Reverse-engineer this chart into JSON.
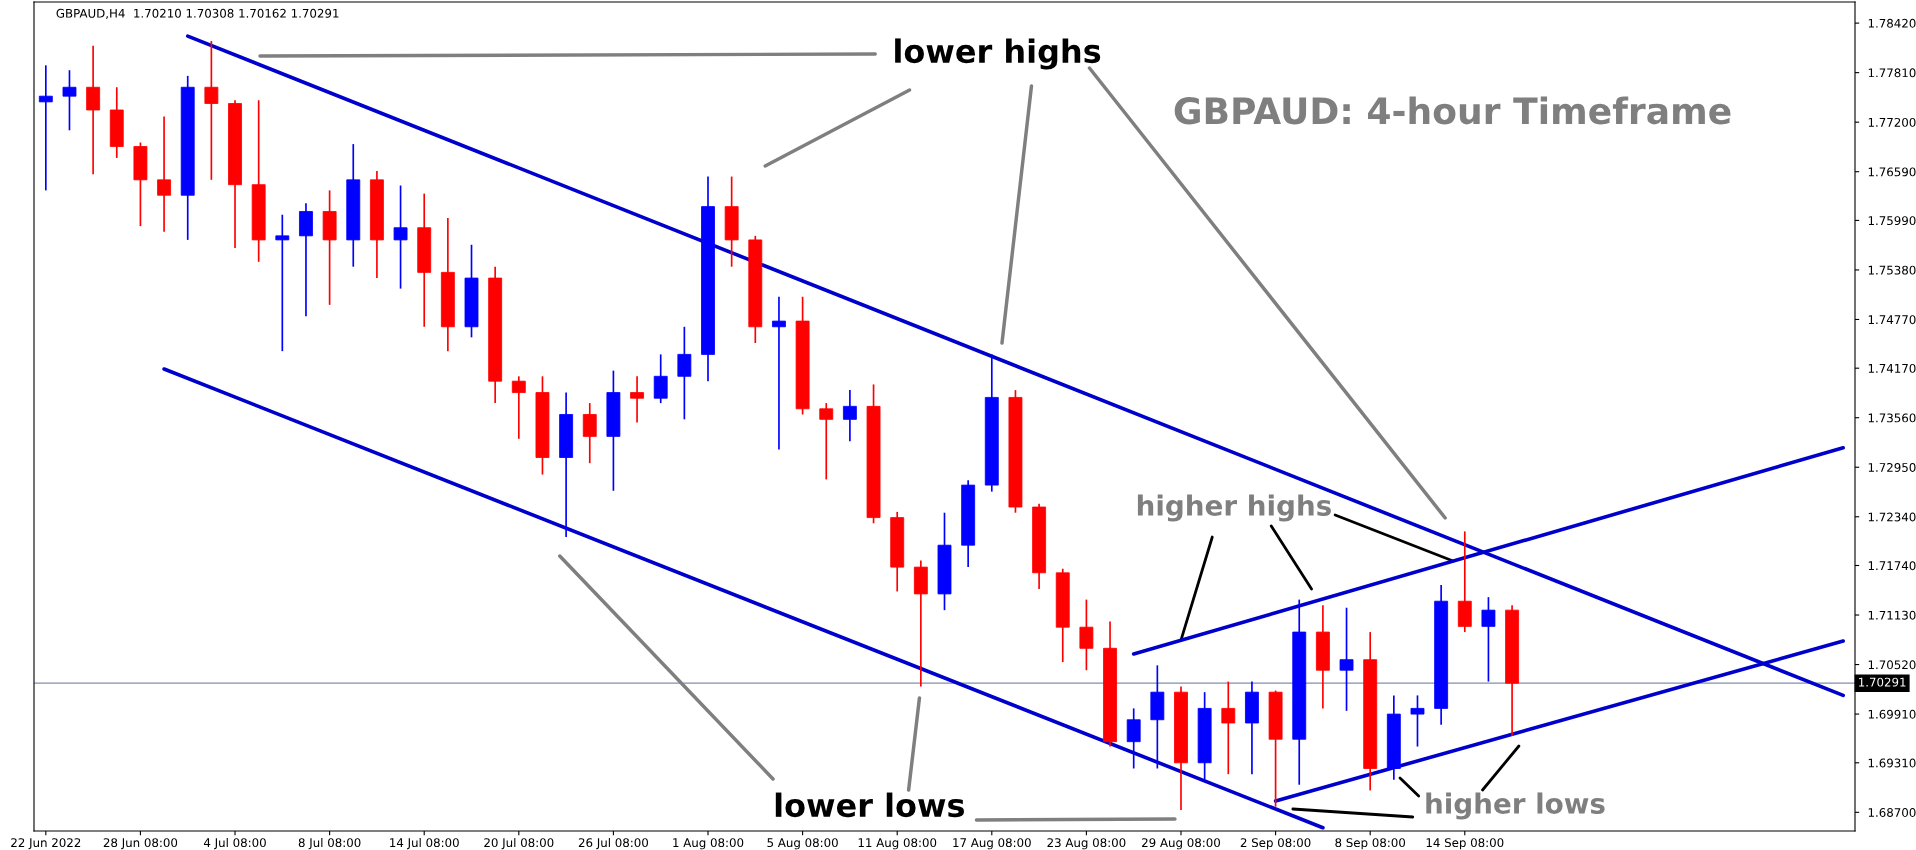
{
  "chart_data": {
    "type": "candlestick",
    "title": "GBPAUD: 4-hour Timeframe",
    "subtitle": "GBPAUD,H4  1.70210 1.70308 1.70162 1.70291",
    "annotations": [
      "lower highs",
      "lower lows",
      {
        "text": "higher highs",
        "x": "29 Aug 08:00",
        "y": 1.7082
      },
      "higher lows"
    ],
    "categories": [
      "22 Jun 2022",
      null,
      null,
      null,
      "28 Jun 08:00",
      null,
      null,
      null,
      "4 Jul 08:00",
      null,
      null,
      null,
      "8 Jul 08:00",
      null,
      null,
      null,
      "14 Jul 08:00",
      null,
      null,
      null,
      "20 Jul 08:00",
      null,
      null,
      null,
      "26 Jul 08:00",
      null,
      null,
      null,
      "1 Aug 08:00",
      null,
      null,
      null,
      "5 Aug 08:00",
      null,
      null,
      null,
      "11 Aug 08:00",
      null,
      null,
      null,
      "17 Aug 08:00",
      null,
      null,
      null,
      "23 Aug 08:00",
      null,
      null,
      null,
      "29 Aug 08:00",
      null,
      null,
      null,
      "2 Sep 08:00",
      null,
      null,
      null,
      "8 Sep 08:00",
      null,
      null,
      null,
      "14 Sep 08:00",
      null,
      null,
      null,
      null,
      null,
      null,
      null,
      null,
      null,
      null,
      null,
      null,
      null,
      null,
      null,
      null
    ],
    "ohlc": [
      [
        1.7745,
        1.779,
        1.7636,
        1.7752
      ],
      [
        1.7752,
        1.7784,
        1.771,
        1.7763
      ],
      [
        1.7763,
        1.7814,
        1.7656,
        1.7735
      ],
      [
        1.7735,
        1.7763,
        1.7676,
        1.769
      ],
      [
        1.769,
        1.7695,
        1.7592,
        1.7649
      ],
      [
        1.7649,
        1.7727,
        1.7585,
        1.763
      ],
      [
        1.763,
        1.7777,
        1.7575,
        1.7763
      ],
      [
        1.7763,
        1.782,
        1.7649,
        1.7743
      ],
      [
        1.7743,
        1.7747,
        1.7565,
        1.7643
      ],
      [
        1.7643,
        1.7747,
        1.7548,
        1.7575
      ],
      [
        1.7575,
        1.7606,
        1.7438,
        1.758
      ],
      [
        1.758,
        1.762,
        1.7481,
        1.761
      ],
      [
        1.761,
        1.7636,
        1.7495,
        1.7575
      ],
      [
        1.7575,
        1.7693,
        1.7542,
        1.7649
      ],
      [
        1.7649,
        1.766,
        1.7528,
        1.7575
      ],
      [
        1.7575,
        1.7642,
        1.7515,
        1.759
      ],
      [
        1.759,
        1.7632,
        1.7468,
        1.7535
      ],
      [
        1.7535,
        1.7602,
        1.7438,
        1.7468
      ],
      [
        1.7468,
        1.7569,
        1.7455,
        1.7528
      ],
      [
        1.7528,
        1.7542,
        1.7374,
        1.7401
      ],
      [
        1.7401,
        1.7407,
        1.733,
        1.7387
      ],
      [
        1.7387,
        1.7407,
        1.7286,
        1.7307
      ],
      [
        1.7307,
        1.7387,
        1.7209,
        1.736
      ],
      [
        1.736,
        1.7374,
        1.73,
        1.7333
      ],
      [
        1.7333,
        1.7414,
        1.7266,
        1.7387
      ],
      [
        1.7387,
        1.7407,
        1.735,
        1.738
      ],
      [
        1.738,
        1.7434,
        1.7374,
        1.7407
      ],
      [
        1.7407,
        1.7468,
        1.7354,
        1.7434
      ],
      [
        1.7434,
        1.7653,
        1.7401,
        1.7616
      ],
      [
        1.7616,
        1.7653,
        1.7542,
        1.7575
      ],
      [
        1.7575,
        1.758,
        1.7448,
        1.7468
      ],
      [
        1.7468,
        1.7505,
        1.7317,
        1.7475
      ],
      [
        1.7475,
        1.7505,
        1.736,
        1.7367
      ],
      [
        1.7367,
        1.7374,
        1.728,
        1.7354
      ],
      [
        1.7354,
        1.739,
        1.7327,
        1.737
      ],
      [
        1.737,
        1.7397,
        1.7226,
        1.7233
      ],
      [
        1.7233,
        1.724,
        1.7142,
        1.7172
      ],
      [
        1.7172,
        1.718,
        1.7025,
        1.7139
      ],
      [
        1.7139,
        1.7239,
        1.7119,
        1.7199
      ],
      [
        1.7199,
        1.7279,
        1.7172,
        1.7273
      ],
      [
        1.7273,
        1.7434,
        1.7265,
        1.7381
      ],
      [
        1.7381,
        1.739,
        1.7239,
        1.7246
      ],
      [
        1.7246,
        1.725,
        1.7145,
        1.7165
      ],
      [
        1.7165,
        1.717,
        1.7055,
        1.7098
      ],
      [
        1.7098,
        1.7132,
        1.7045,
        1.7072
      ],
      [
        1.7072,
        1.7105,
        1.6951,
        1.6957
      ],
      [
        1.6957,
        1.6998,
        1.6924,
        1.6984
      ],
      [
        1.6984,
        1.7051,
        1.6924,
        1.7018
      ],
      [
        1.7018,
        1.7025,
        1.6873,
        1.6931
      ],
      [
        1.6931,
        1.7018,
        1.691,
        1.6998
      ],
      [
        1.6998,
        1.7031,
        1.6917,
        1.698
      ],
      [
        1.698,
        1.7031,
        1.6917,
        1.7018
      ],
      [
        1.7018,
        1.702,
        1.6877,
        1.696
      ],
      [
        1.696,
        1.7132,
        1.6904,
        1.7092
      ],
      [
        1.7092,
        1.7125,
        1.6998,
        1.7045
      ],
      [
        1.7045,
        1.7122,
        1.6995,
        1.7058
      ],
      [
        1.7058,
        1.7092,
        1.6897,
        1.6924
      ],
      [
        1.6924,
        1.7014,
        1.691,
        1.6991
      ],
      [
        1.6991,
        1.7014,
        1.6951,
        1.6998
      ],
      [
        1.6998,
        1.715,
        1.6978,
        1.713
      ],
      [
        1.713,
        1.7216,
        1.7092,
        1.7099
      ],
      [
        1.7099,
        1.7135,
        1.7031,
        1.7119
      ],
      [
        1.7119,
        1.7125,
        1.6964,
        1.7029
      ],
      null,
      null,
      null,
      null,
      null,
      null,
      null,
      null,
      null,
      null,
      null,
      null,
      null,
      null
    ],
    "colors": [
      "#0000ff",
      "#0000ff",
      "#ff0000",
      "#ff0000",
      "#ff0000",
      "#ff0000",
      "#0000ff",
      "#ff0000",
      "#ff0000",
      "#ff0000",
      "#0000ff",
      "#0000ff",
      "#ff0000",
      "#0000ff",
      "#ff0000",
      "#0000ff",
      "#ff0000",
      "#ff0000",
      "#0000ff",
      "#ff0000",
      "#ff0000",
      "#ff0000",
      "#0000ff",
      "#ff0000",
      "#0000ff",
      "#ff0000",
      "#0000ff",
      "#0000ff",
      "#0000ff",
      "#ff0000",
      "#ff0000",
      "#0000ff",
      "#ff0000",
      "#ff0000",
      "#0000ff",
      "#ff0000",
      "#ff0000",
      "#ff0000",
      "#0000ff",
      "#0000ff",
      "#0000ff",
      "#ff0000",
      "#ff0000",
      "#ff0000",
      "#ff0000",
      "#ff0000",
      "#0000ff",
      "#0000ff",
      "#ff0000",
      "#0000ff",
      "#ff0000",
      "#0000ff",
      "#ff0000",
      "#0000ff",
      "#ff0000",
      "#0000ff",
      "#ff0000",
      "#0000ff",
      "#0000ff",
      "#0000ff",
      "#ff0000",
      "#0000ff",
      "#ff0000",
      null,
      null,
      null,
      null,
      null,
      null,
      null,
      null,
      null,
      null,
      null,
      null,
      null,
      null
    ],
    "series": [
      {
        "type": "line",
        "color": "#0000cc",
        "values": [
          null,
          null,
          null,
          null,
          null,
          null,
          1.7826,
          null,
          null,
          null,
          null,
          null,
          null,
          null,
          null,
          null,
          null,
          null,
          null,
          null,
          null,
          null,
          null,
          null,
          null,
          null,
          null,
          null,
          null,
          null,
          null,
          null,
          null,
          null,
          null,
          null,
          null,
          null,
          null,
          null,
          null,
          null,
          null,
          null,
          null,
          null,
          null,
          null,
          null,
          null,
          null,
          null,
          null,
          null,
          null,
          null,
          null,
          null,
          null,
          null,
          null,
          null,
          null,
          null,
          null,
          null,
          null,
          null,
          null,
          null,
          null,
          null,
          null,
          null,
          null,
          null,
          1.7014
        ]
      },
      {
        "type": "line",
        "color": "#0000cc",
        "values": [
          null,
          null,
          null,
          null,
          null,
          1.7416,
          null,
          null,
          null,
          null,
          null,
          null,
          null,
          null,
          null,
          null,
          null,
          null,
          null,
          null,
          null,
          null,
          null,
          null,
          null,
          null,
          null,
          null,
          null,
          null,
          null,
          null,
          null,
          null,
          null,
          null,
          null,
          null,
          null,
          null,
          null,
          null,
          null,
          null,
          null,
          null,
          null,
          null,
          null,
          null,
          null,
          null,
          null,
          null,
          1.6851,
          null,
          null,
          null,
          null,
          null,
          null,
          null,
          null,
          null,
          null,
          null,
          null,
          null,
          null,
          null,
          null,
          null,
          null,
          null,
          null,
          null,
          null
        ]
      },
      {
        "type": "line",
        "color": "#0000cc",
        "values": [
          null,
          null,
          null,
          null,
          null,
          null,
          null,
          null,
          null,
          null,
          null,
          null,
          null,
          null,
          null,
          null,
          null,
          null,
          null,
          null,
          null,
          null,
          null,
          null,
          null,
          null,
          null,
          null,
          null,
          null,
          null,
          null,
          null,
          null,
          null,
          null,
          null,
          null,
          null,
          null,
          null,
          null,
          null,
          null,
          null,
          null,
          1.7065,
          null,
          null,
          null,
          null,
          null,
          null,
          null,
          null,
          null,
          null,
          null,
          null,
          null,
          null,
          null,
          null,
          null,
          null,
          null,
          null,
          null,
          null,
          null,
          null,
          null,
          null,
          null,
          null,
          null,
          1.7319
        ]
      },
      {
        "type": "line",
        "color": "#0000cc",
        "values": [
          null,
          null,
          null,
          null,
          null,
          null,
          null,
          null,
          null,
          null,
          null,
          null,
          null,
          null,
          null,
          null,
          null,
          null,
          null,
          null,
          null,
          null,
          null,
          null,
          null,
          null,
          null,
          null,
          null,
          null,
          null,
          null,
          null,
          null,
          null,
          null,
          null,
          null,
          null,
          null,
          null,
          null,
          null,
          null,
          null,
          null,
          null,
          null,
          null,
          null,
          null,
          null,
          1.6884,
          null,
          null,
          null,
          null,
          null,
          null,
          null,
          null,
          null,
          null,
          null,
          null,
          null,
          null,
          null,
          null,
          null,
          null,
          null,
          null,
          null,
          null,
          null,
          1.7081
        ]
      }
    ],
    "ylim": [
      1.6847,
      1.7868
    ],
    "yticks": [
      {
        "value": 1.687,
        "label": "1.68700"
      },
      {
        "value": 1.6931,
        "label": "1.69310"
      },
      {
        "value": 1.6991,
        "label": "1.69910"
      },
      {
        "value": 1.7052,
        "label": "1.70520"
      },
      {
        "value": 1.7113,
        "label": "1.71130"
      },
      {
        "value": 1.7174,
        "label": "1.71740"
      },
      {
        "value": 1.7234,
        "label": "1.72340"
      },
      {
        "value": 1.7295,
        "label": "1.72950"
      },
      {
        "value": 1.7356,
        "label": "1.73560"
      },
      {
        "value": 1.7417,
        "label": "1.74170"
      },
      {
        "value": 1.7477,
        "label": "1.74770"
      },
      {
        "value": 1.7538,
        "label": "1.75380"
      },
      {
        "value": 1.7599,
        "label": "1.75990"
      },
      {
        "value": 1.7659,
        "label": "1.76590"
      },
      {
        "value": 1.772,
        "label": "1.77200"
      },
      {
        "value": 1.7781,
        "label": "1.77810"
      },
      {
        "value": 1.7842,
        "label": "1.78420"
      }
    ],
    "ref_lines": [
      {
        "axis": "y",
        "value": 1.70291,
        "label": "1.70291",
        "color": "#8090b0"
      }
    ]
  }
}
